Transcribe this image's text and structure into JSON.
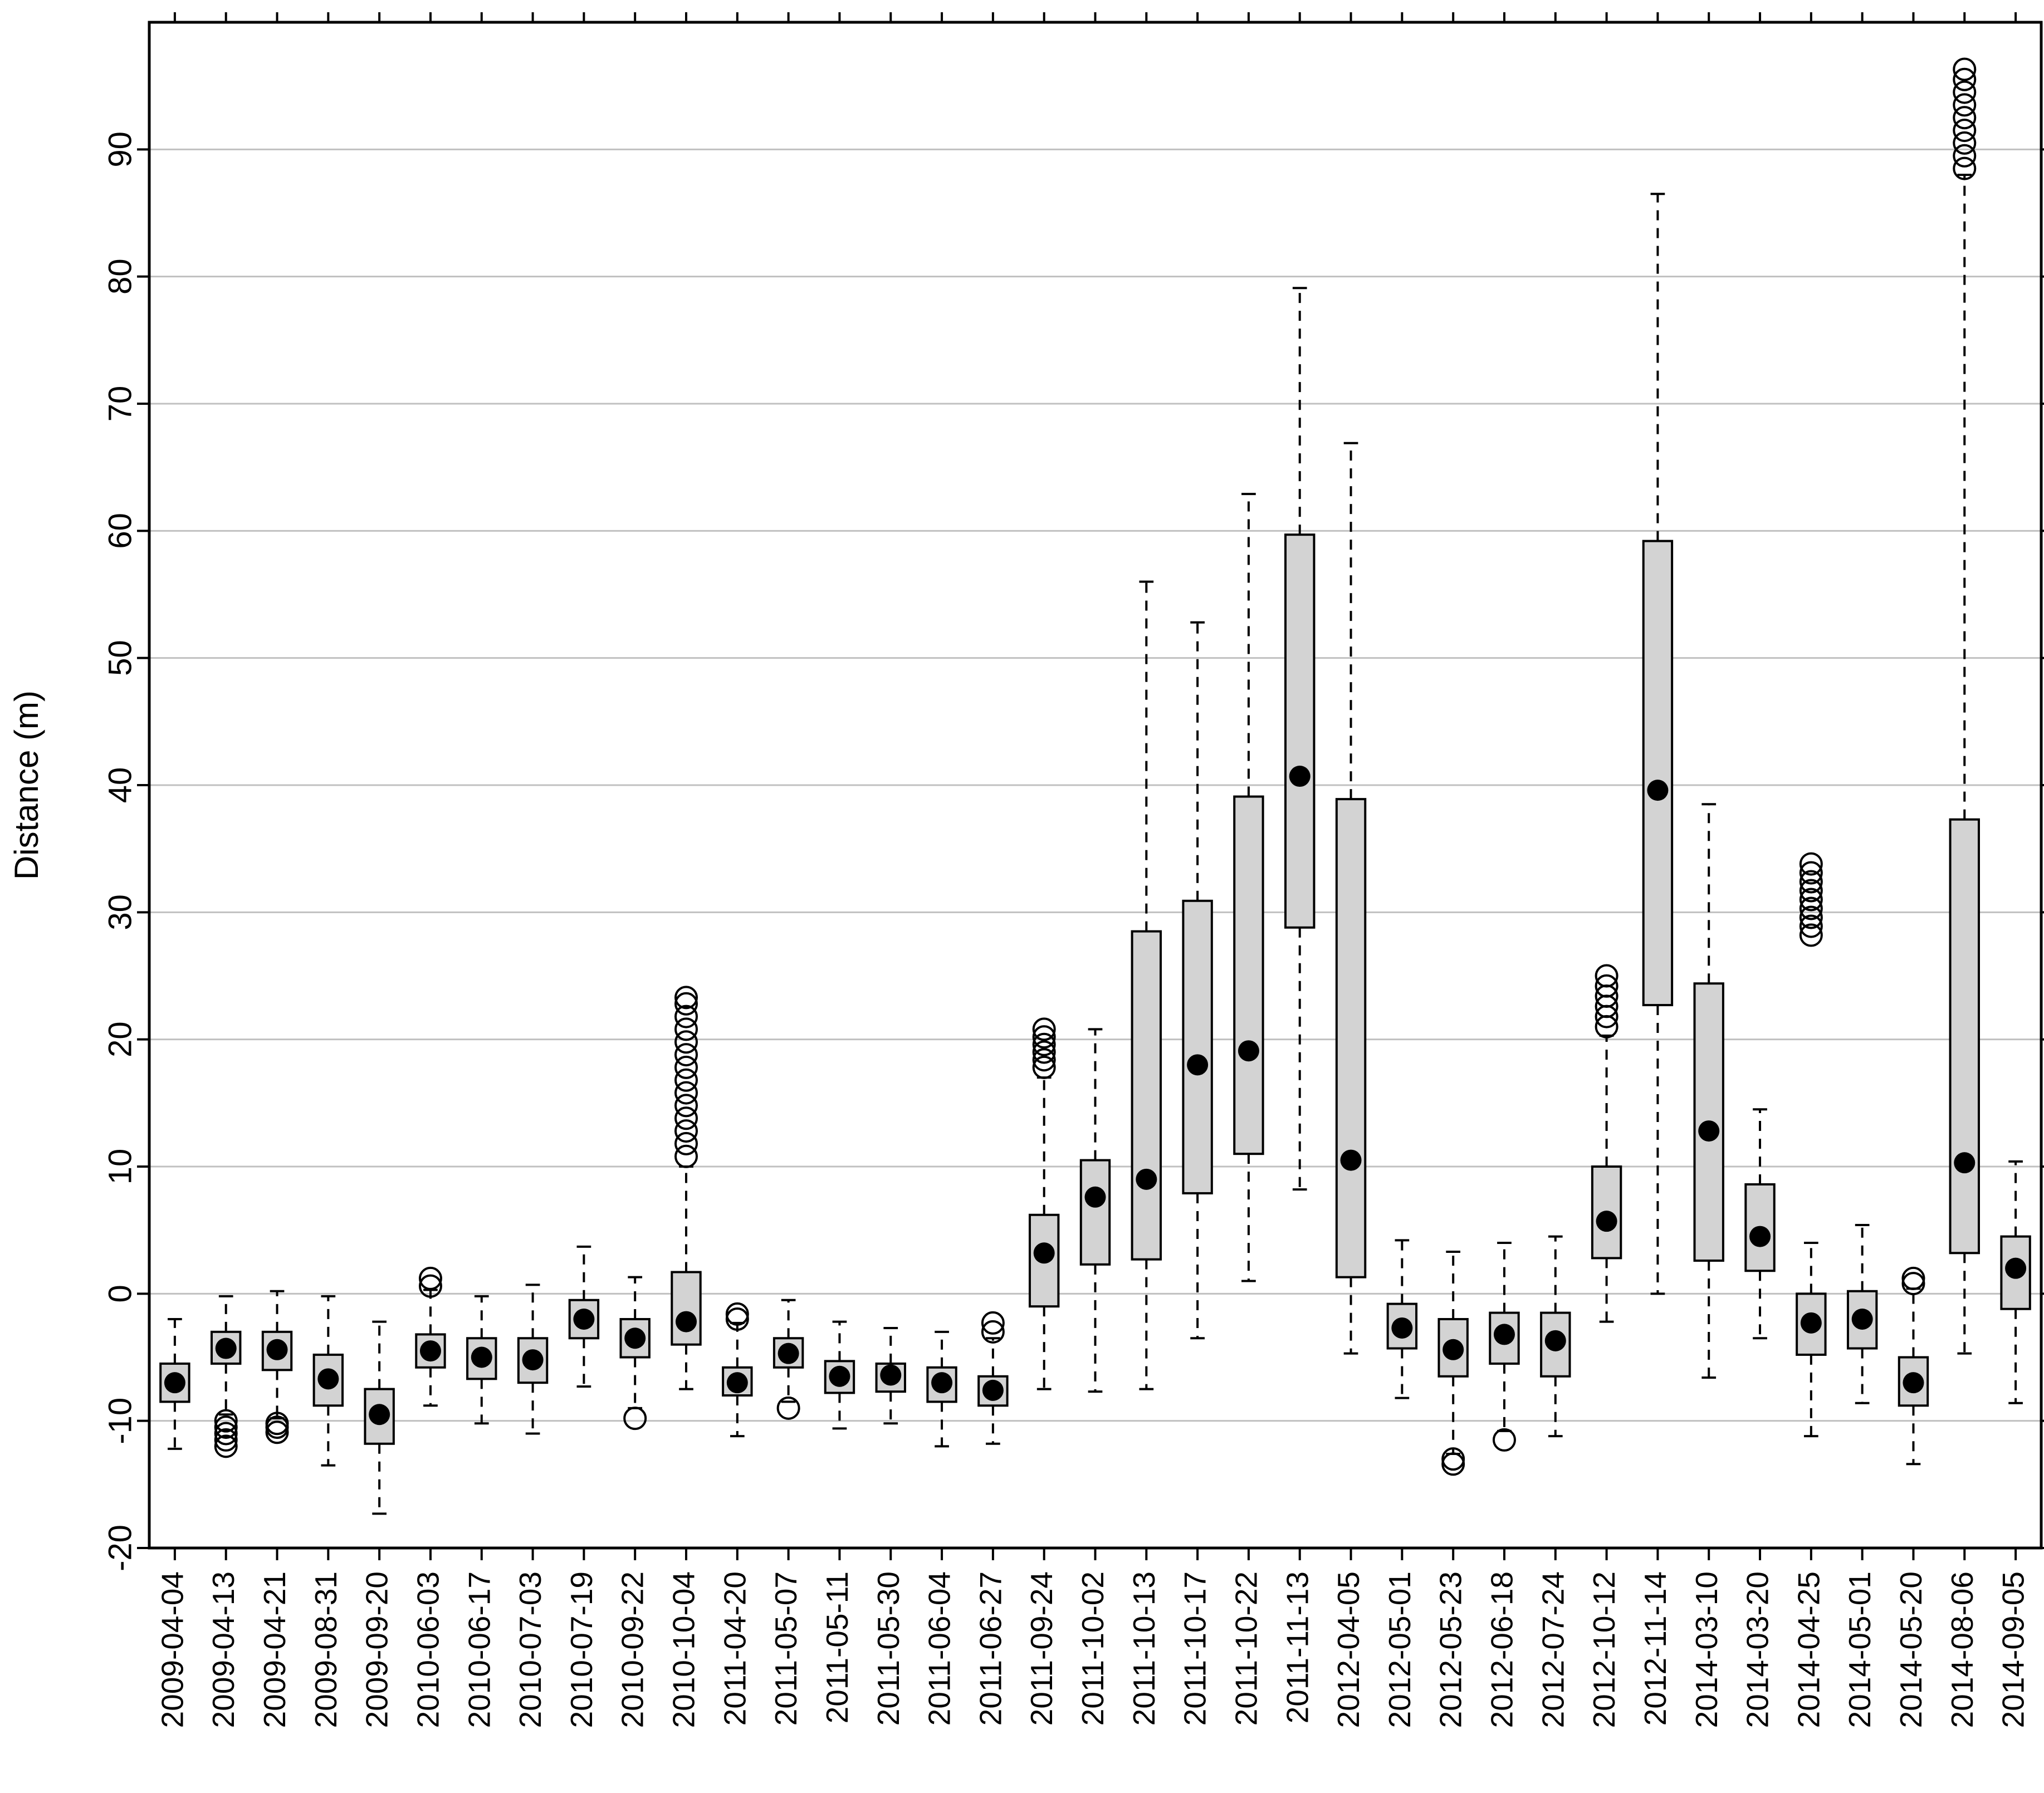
{
  "chart_data": {
    "type": "box",
    "ylabel": "Distance (m)",
    "ylim": [
      -20,
      100
    ],
    "yticks": [
      -20,
      -10,
      0,
      10,
      20,
      30,
      40,
      50,
      60,
      70,
      80,
      90
    ],
    "grid": "horizontal",
    "colors": {
      "box_fill": "#d3d3d3",
      "stroke": "#000000",
      "grid": "#c0c0c0"
    },
    "categories": [
      "2009-04-04",
      "2009-04-13",
      "2009-04-21",
      "2009-08-31",
      "2009-09-20",
      "2010-06-03",
      "2010-06-17",
      "2010-07-03",
      "2010-07-19",
      "2010-09-22",
      "2010-10-04",
      "2011-04-20",
      "2011-05-07",
      "2011-05-11",
      "2011-05-30",
      "2011-06-04",
      "2011-06-27",
      "2011-09-24",
      "2011-10-02",
      "2011-10-13",
      "2011-10-17",
      "2011-10-22",
      "2011-11-13",
      "2012-04-05",
      "2012-05-01",
      "2012-05-23",
      "2012-06-18",
      "2012-07-24",
      "2012-10-12",
      "2012-11-14",
      "2014-03-10",
      "2014-03-20",
      "2014-04-25",
      "2014-05-01",
      "2014-05-20",
      "2014-08-06",
      "2014-09-05"
    ],
    "boxes": [
      {
        "whisker_low": -12.2,
        "q1": -8.5,
        "q3": -5.5,
        "whisker_high": -2.0,
        "mean": -7.0,
        "outliers": []
      },
      {
        "whisker_low": -9.5,
        "q1": -5.5,
        "q3": -3.0,
        "whisker_high": -0.2,
        "mean": -4.3,
        "outliers": [
          -12.0,
          -11.5,
          -11.0,
          -10.5,
          -10.0
        ]
      },
      {
        "whisker_low": -9.8,
        "q1": -6.0,
        "q3": -3.0,
        "whisker_high": 0.2,
        "mean": -4.4,
        "outliers": [
          -10.9,
          -10.5,
          -10.2
        ]
      },
      {
        "whisker_low": -13.5,
        "q1": -8.8,
        "q3": -4.8,
        "whisker_high": -0.2,
        "mean": -6.7,
        "outliers": []
      },
      {
        "whisker_low": -17.3,
        "q1": -11.8,
        "q3": -7.5,
        "whisker_high": -2.2,
        "mean": -9.5,
        "outliers": []
      },
      {
        "whisker_low": -8.8,
        "q1": -5.8,
        "q3": -3.2,
        "whisker_high": 0.3,
        "mean": -4.5,
        "outliers": [
          0.6,
          1.2
        ]
      },
      {
        "whisker_low": -10.2,
        "q1": -6.7,
        "q3": -3.5,
        "whisker_high": -0.2,
        "mean": -5.0,
        "outliers": []
      },
      {
        "whisker_low": -11.0,
        "q1": -7.0,
        "q3": -3.5,
        "whisker_high": 0.7,
        "mean": -5.2,
        "outliers": []
      },
      {
        "whisker_low": -7.3,
        "q1": -3.5,
        "q3": -0.5,
        "whisker_high": 3.7,
        "mean": -2.0,
        "outliers": []
      },
      {
        "whisker_low": -9.0,
        "q1": -5.0,
        "q3": -2.0,
        "whisker_high": 1.3,
        "mean": -3.5,
        "outliers": [
          -9.8
        ]
      },
      {
        "whisker_low": -7.5,
        "q1": -4.0,
        "q3": 1.7,
        "whisker_high": 10.0,
        "mean": -2.2,
        "outliers": [
          10.8,
          11.8,
          12.8,
          13.8,
          14.8,
          15.8,
          16.8,
          17.8,
          18.8,
          19.8,
          20.8,
          21.8,
          22.8,
          23.3
        ]
      },
      {
        "whisker_low": -11.2,
        "q1": -8.0,
        "q3": -5.8,
        "whisker_high": -2.3,
        "mean": -7.0,
        "outliers": [
          -2.0,
          -1.6
        ]
      },
      {
        "whisker_low": -8.5,
        "q1": -5.8,
        "q3": -3.5,
        "whisker_high": -0.5,
        "mean": -4.7,
        "outliers": [
          -9.0
        ]
      },
      {
        "whisker_low": -10.6,
        "q1": -7.8,
        "q3": -5.3,
        "whisker_high": -2.2,
        "mean": -6.5,
        "outliers": []
      },
      {
        "whisker_low": -10.2,
        "q1": -7.7,
        "q3": -5.5,
        "whisker_high": -2.7,
        "mean": -6.4,
        "outliers": []
      },
      {
        "whisker_low": -12.0,
        "q1": -8.5,
        "q3": -5.8,
        "whisker_high": -3.0,
        "mean": -7.0,
        "outliers": []
      },
      {
        "whisker_low": -11.8,
        "q1": -8.8,
        "q3": -6.5,
        "whisker_high": -3.5,
        "mean": -7.6,
        "outliers": [
          -3.0,
          -2.3
        ]
      },
      {
        "whisker_low": -7.5,
        "q1": -1.0,
        "q3": 6.2,
        "whisker_high": 17.0,
        "mean": 3.2,
        "outliers": [
          17.8,
          18.4,
          19.0,
          19.6,
          20.2,
          20.8
        ]
      },
      {
        "whisker_low": -7.7,
        "q1": 2.3,
        "q3": 10.5,
        "whisker_high": 20.8,
        "mean": 7.6,
        "outliers": []
      },
      {
        "whisker_low": -7.5,
        "q1": 2.7,
        "q3": 28.5,
        "whisker_high": 56.0,
        "mean": 9.0,
        "outliers": []
      },
      {
        "whisker_low": -3.5,
        "q1": 7.9,
        "q3": 30.9,
        "whisker_high": 52.8,
        "mean": 18.0,
        "outliers": []
      },
      {
        "whisker_low": 1.0,
        "q1": 11.0,
        "q3": 39.1,
        "whisker_high": 62.9,
        "mean": 19.1,
        "outliers": []
      },
      {
        "whisker_low": 8.2,
        "q1": 28.8,
        "q3": 59.7,
        "whisker_high": 79.1,
        "mean": 40.7,
        "outliers": []
      },
      {
        "whisker_low": -4.7,
        "q1": 1.3,
        "q3": 38.9,
        "whisker_high": 66.9,
        "mean": 10.5,
        "outliers": []
      },
      {
        "whisker_low": -8.2,
        "q1": -4.3,
        "q3": -0.8,
        "whisker_high": 4.2,
        "mean": -2.7,
        "outliers": []
      },
      {
        "whisker_low": -12.6,
        "q1": -6.5,
        "q3": -2.0,
        "whisker_high": 3.3,
        "mean": -4.4,
        "outliers": [
          -13.4,
          -13.0
        ]
      },
      {
        "whisker_low": -10.8,
        "q1": -5.5,
        "q3": -1.5,
        "whisker_high": 4.0,
        "mean": -3.2,
        "outliers": [
          -11.5
        ]
      },
      {
        "whisker_low": -11.2,
        "q1": -6.5,
        "q3": -1.5,
        "whisker_high": 4.5,
        "mean": -3.7,
        "outliers": []
      },
      {
        "whisker_low": -2.2,
        "q1": 2.8,
        "q3": 10.0,
        "whisker_high": 20.3,
        "mean": 5.7,
        "outliers": [
          21.0,
          21.8,
          22.6,
          23.4,
          24.2,
          25.0
        ]
      },
      {
        "whisker_low": 0.0,
        "q1": 22.7,
        "q3": 59.2,
        "whisker_high": 86.5,
        "mean": 39.6,
        "outliers": []
      },
      {
        "whisker_low": -6.6,
        "q1": 2.6,
        "q3": 24.4,
        "whisker_high": 38.5,
        "mean": 12.8,
        "outliers": []
      },
      {
        "whisker_low": -3.5,
        "q1": 1.8,
        "q3": 8.6,
        "whisker_high": 14.5,
        "mean": 4.5,
        "outliers": []
      },
      {
        "whisker_low": -11.2,
        "q1": -4.8,
        "q3": 0.0,
        "whisker_high": 4.0,
        "mean": -2.3,
        "outliers": [
          28.2,
          28.9,
          29.6,
          30.3,
          31.0,
          31.7,
          32.4,
          33.1,
          33.8
        ]
      },
      {
        "whisker_low": -8.6,
        "q1": -4.3,
        "q3": 0.2,
        "whisker_high": 5.4,
        "mean": -2.0,
        "outliers": []
      },
      {
        "whisker_low": -13.4,
        "q1": -8.8,
        "q3": -5.0,
        "whisker_high": 0.4,
        "mean": -7.0,
        "outliers": [
          0.8,
          1.2
        ]
      },
      {
        "whisker_low": -4.7,
        "q1": 3.2,
        "q3": 37.3,
        "whisker_high": 88.0,
        "mean": 10.3,
        "outliers": [
          88.5,
          89.5,
          90.5,
          91.5,
          92.5,
          93.5,
          94.5,
          95.5,
          96.3
        ]
      },
      {
        "whisker_low": -8.6,
        "q1": -1.2,
        "q3": 4.5,
        "whisker_high": 10.4,
        "mean": 2.0,
        "outliers": []
      }
    ]
  }
}
